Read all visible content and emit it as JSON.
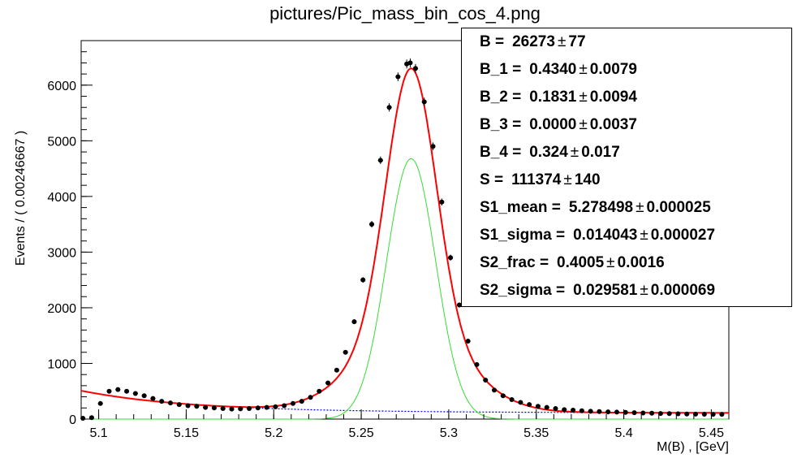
{
  "chart_data": {
    "type": "scatter",
    "title": "pictures/Pic_mass_bin_cos_4.png",
    "xlabel": "M(B) , [GeV]",
    "ylabel": "Events / ( 0.00246667 )",
    "xlim": [
      5.09,
      5.46
    ],
    "ylim": [
      0,
      6800
    ],
    "x_ticks": [
      "5.1",
      "5.15",
      "5.2",
      "5.25",
      "5.3",
      "5.35",
      "5.4",
      "5.45"
    ],
    "y_ticks": [
      "0",
      "1000",
      "2000",
      "3000",
      "4000",
      "5000",
      "6000"
    ],
    "bin_width": 0.00246667,
    "series": [
      {
        "kind": "data",
        "color": "#000000",
        "x": [
          5.091,
          5.096,
          5.101,
          5.106,
          5.111,
          5.116,
          5.121,
          5.126,
          5.131,
          5.136,
          5.141,
          5.146,
          5.151,
          5.156,
          5.161,
          5.166,
          5.171,
          5.176,
          5.181,
          5.186,
          5.191,
          5.196,
          5.201,
          5.206,
          5.211,
          5.216,
          5.221,
          5.226,
          5.231,
          5.236,
          5.241,
          5.246,
          5.251,
          5.256,
          5.261,
          5.266,
          5.271,
          5.276,
          5.278,
          5.281,
          5.286,
          5.291,
          5.296,
          5.301,
          5.306,
          5.311,
          5.316,
          5.321,
          5.326,
          5.331,
          5.336,
          5.341,
          5.346,
          5.351,
          5.356,
          5.361,
          5.366,
          5.371,
          5.376,
          5.381,
          5.386,
          5.391,
          5.396,
          5.401,
          5.406,
          5.411,
          5.416,
          5.421,
          5.426,
          5.431,
          5.436,
          5.441,
          5.446,
          5.451,
          5.456
        ],
        "y": [
          15,
          25,
          280,
          500,
          530,
          500,
          460,
          420,
          370,
          320,
          290,
          260,
          240,
          230,
          210,
          200,
          190,
          180,
          185,
          190,
          200,
          210,
          220,
          240,
          280,
          320,
          390,
          500,
          650,
          880,
          1200,
          1750,
          2500,
          3500,
          4650,
          5600,
          6150,
          6380,
          6400,
          6300,
          5700,
          4900,
          3900,
          2900,
          2050,
          1400,
          980,
          700,
          520,
          420,
          350,
          300,
          260,
          230,
          210,
          190,
          170,
          160,
          150,
          140,
          135,
          130,
          125,
          120,
          115,
          110,
          105,
          100,
          98,
          95,
          92,
          90,
          88,
          86,
          85
        ]
      },
      {
        "kind": "total-fit",
        "color": "#ff0000"
      },
      {
        "kind": "signal-component",
        "color": "#33dd33"
      },
      {
        "kind": "background-component",
        "color": "#0000dd"
      }
    ],
    "fit_params": {
      "B": 26273,
      "B_1": 0.434,
      "B_2": 0.1831,
      "B_3": 0.0,
      "B_4": 0.324,
      "S": 111374,
      "S1_mean": 5.278498,
      "S1_sigma": 0.014043,
      "S2_frac": 0.4005,
      "S2_sigma": 0.029581
    }
  },
  "stats_box": [
    {
      "name": "B =",
      "value": "26273",
      "error": "77"
    },
    {
      "name": "B_1 =",
      "value": "0.4340",
      "error": "0.0079"
    },
    {
      "name": "B_2 =",
      "value": "0.1831",
      "error": "0.0094"
    },
    {
      "name": "B_3 =",
      "value": "0.0000",
      "error": "0.0037"
    },
    {
      "name": "B_4 =",
      "value": "0.324",
      "error": "0.017"
    },
    {
      "name": "S =",
      "value": "111374",
      "error": "140"
    },
    {
      "name": "S1_mean =",
      "value": "5.278498",
      "error": "0.000025"
    },
    {
      "name": "S1_sigma =",
      "value": "0.014043",
      "error": "0.000027"
    },
    {
      "name": "S2_frac =",
      "value": "0.4005",
      "error": "0.0016"
    },
    {
      "name": "S2_sigma =",
      "value": "0.029581",
      "error": "0.000069"
    }
  ],
  "pm_symbol": "±"
}
